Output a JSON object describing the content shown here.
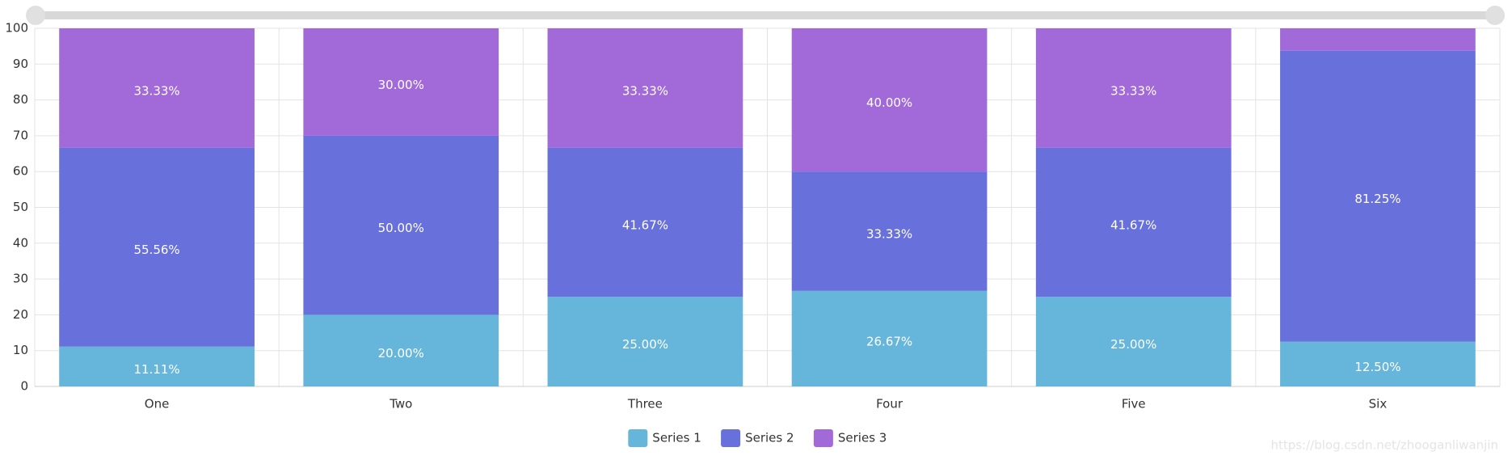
{
  "chart_data": {
    "type": "bar",
    "stacked": true,
    "categories": [
      "One",
      "Two",
      "Three",
      "Four",
      "Five",
      "Six"
    ],
    "series": [
      {
        "name": "Series 1",
        "color": "#66b5db",
        "values": [
          11.11,
          20,
          25,
          26.67,
          25,
          12.5
        ],
        "value_labels": [
          "11.11%",
          "20.00%",
          "25.00%",
          "26.67%",
          "25.00%",
          "12.50%"
        ]
      },
      {
        "name": "Series 2",
        "color": "#6870dc",
        "values": [
          55.56,
          50,
          41.67,
          33.33,
          41.67,
          81.25
        ],
        "value_labels": [
          "55.56%",
          "50.00%",
          "41.67%",
          "33.33%",
          "41.67%",
          "81.25%"
        ]
      },
      {
        "name": "Series 3",
        "color": "#a26ad9",
        "values": [
          33.33,
          30,
          33.33,
          40,
          33.33,
          6.25
        ],
        "value_labels": [
          "33.33%",
          "30.00%",
          "33.33%",
          "40.00%",
          "33.33%",
          null
        ]
      }
    ],
    "ylim": [
      0,
      100
    ],
    "yticks": [
      0,
      10,
      20,
      30,
      40,
      50,
      60,
      70,
      80,
      90,
      100
    ],
    "grid": true,
    "legend": "bottom",
    "watermark": "https://blog.csdn.net/zhooganliwanjin"
  }
}
